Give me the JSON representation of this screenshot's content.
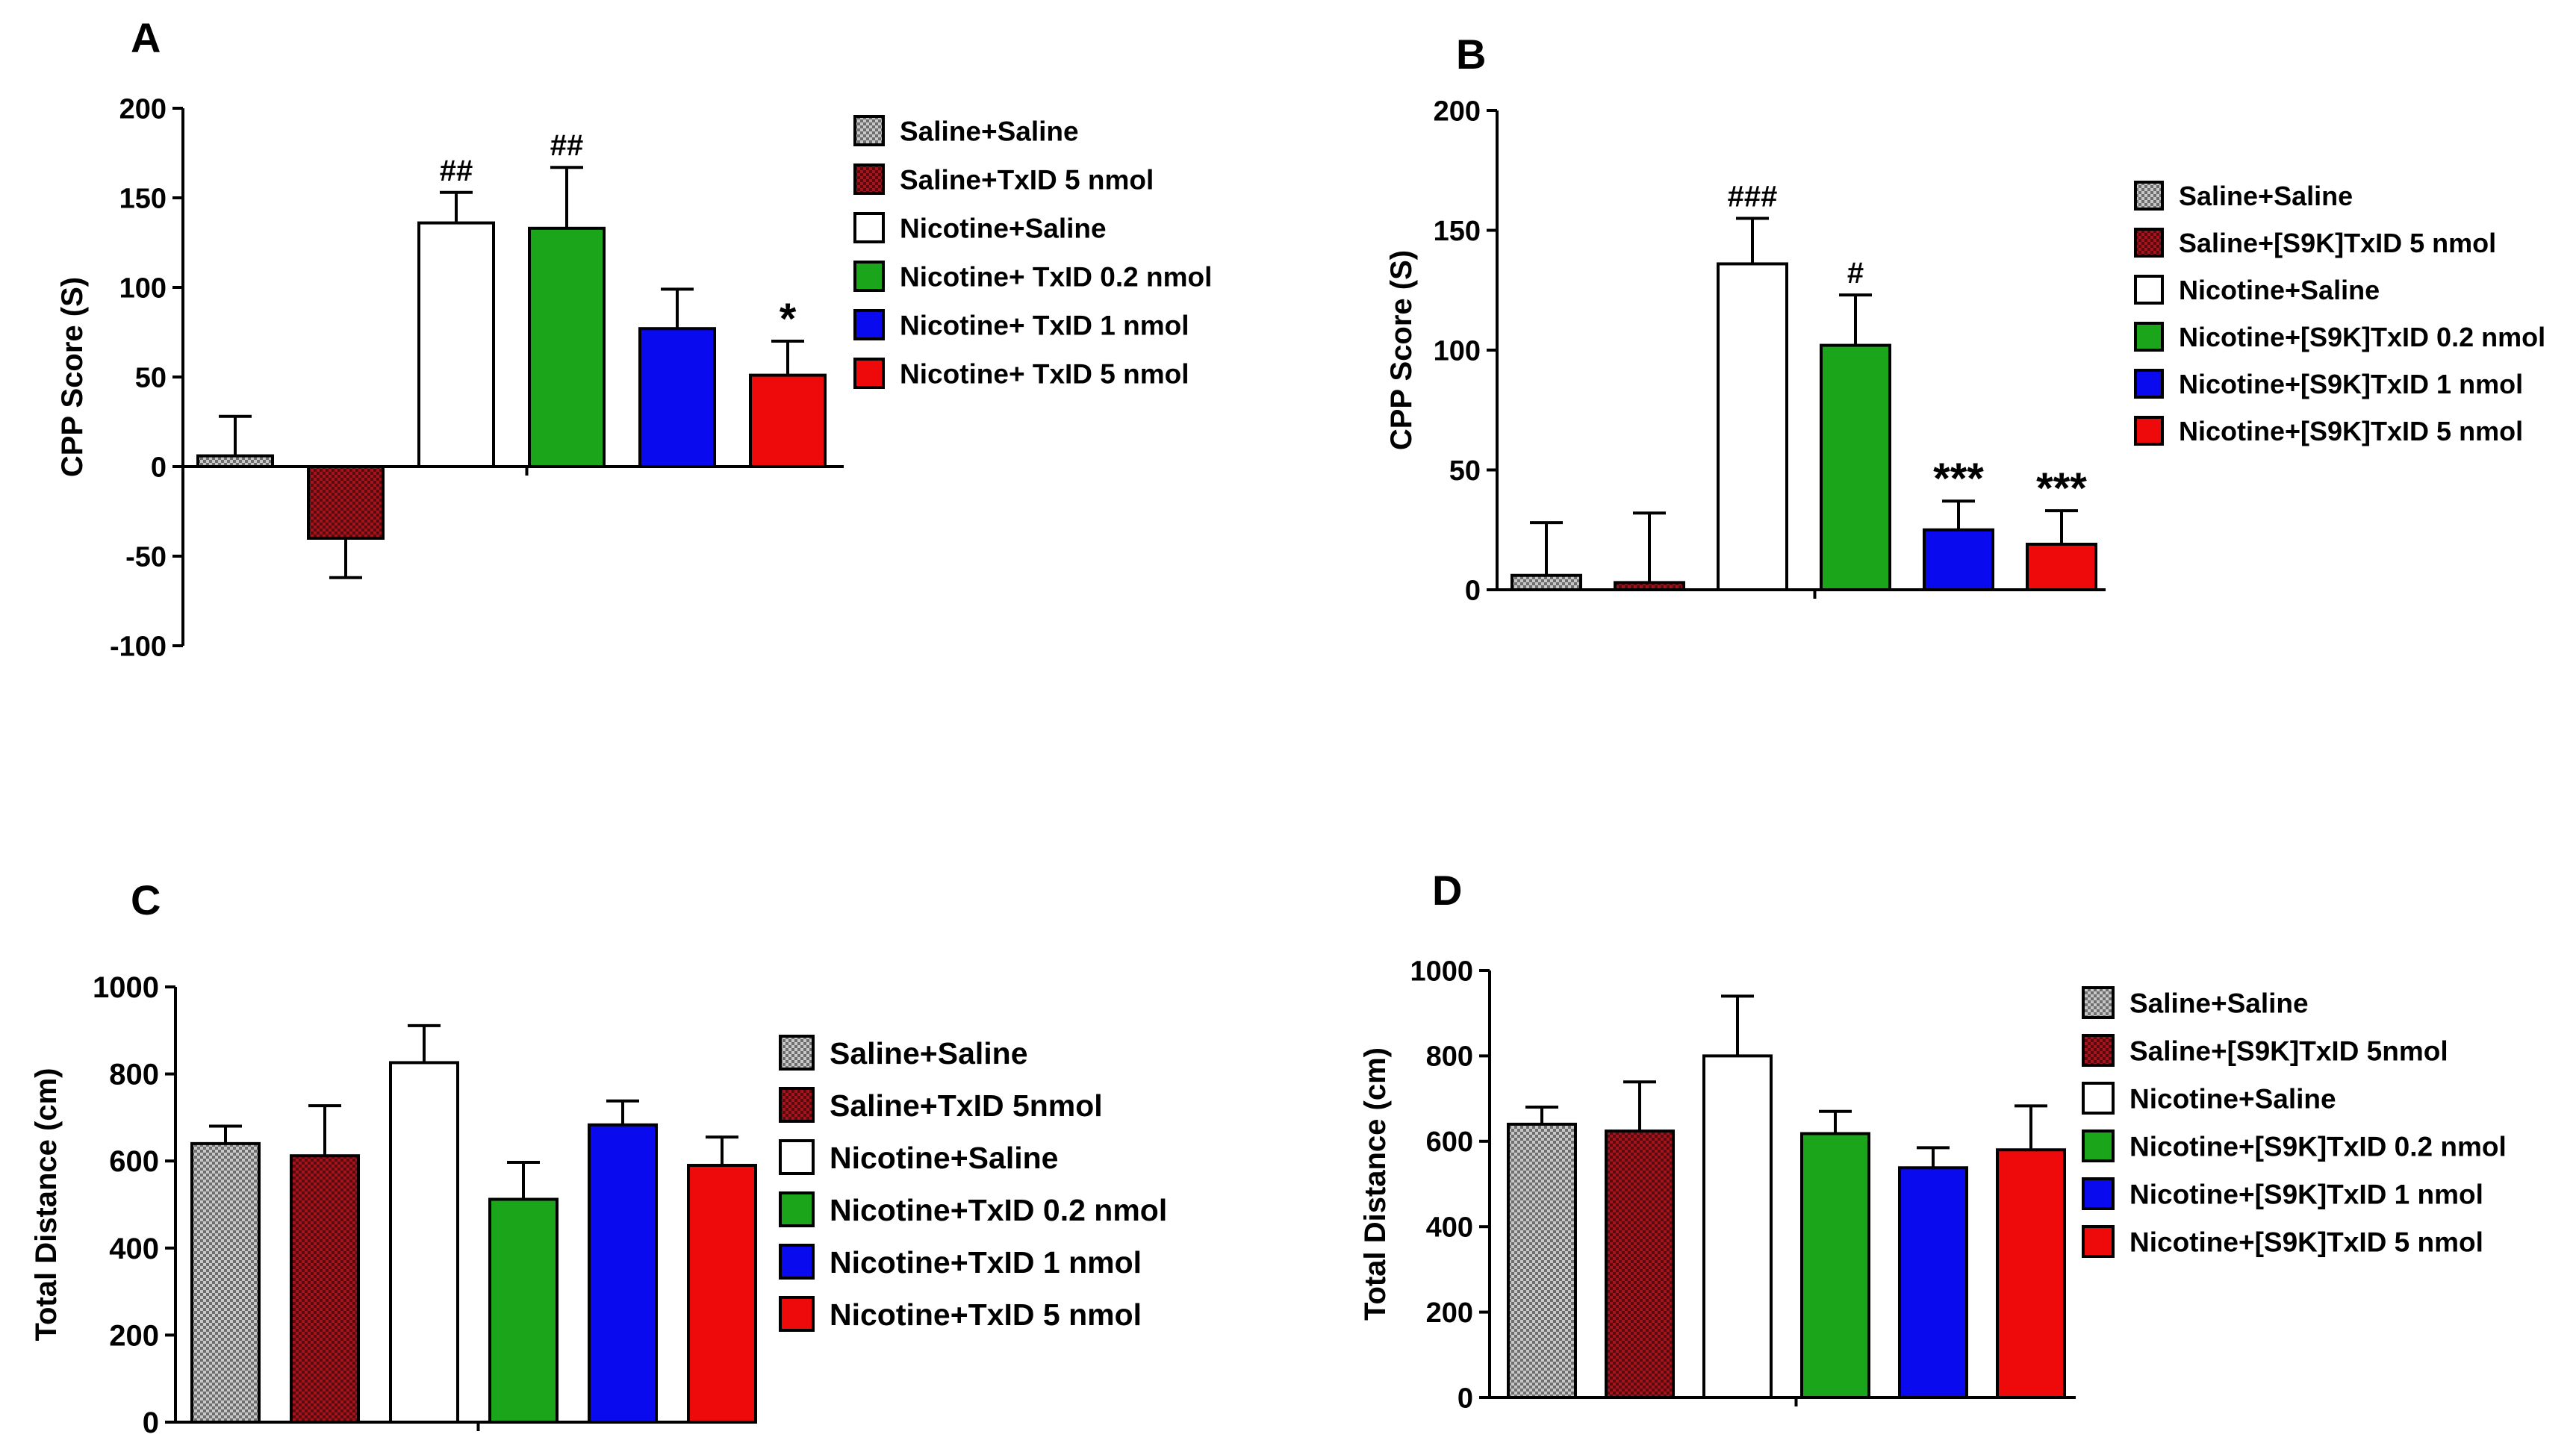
{
  "colors": {
    "saline_saline": "#bdbdbd",
    "saline_txid": "#a3141c",
    "nicotine_saline": "#ffffff",
    "nicotine_02": "#1aa51a",
    "nicotine_1": "#0a0aee",
    "nicotine_5": "#ee0a0a"
  },
  "chart_data": [
    {
      "panel": "A",
      "type": "bar",
      "ylabel": "CPP Score (S)",
      "ylim": [
        -100,
        200
      ],
      "yticks": [
        200,
        150,
        100,
        50,
        0,
        -50,
        -100
      ],
      "categories": [
        "Saline+Saline",
        "Saline+TxID 5 nmol",
        "Nicotine+Saline",
        "Nicotine+ TxID 0.2 nmol",
        "Nicotine+ TxID 1 nmol",
        "Nicotine+ TxID 5 nmol"
      ],
      "values": [
        6,
        -40,
        136,
        133,
        77,
        51
      ],
      "errors": [
        22,
        22,
        17,
        34,
        22,
        19
      ],
      "annotations": [
        "",
        "",
        "##",
        "##",
        "",
        "*"
      ],
      "legend": [
        "Saline+Saline",
        "Saline+TxID 5 nmol",
        "Nicotine+Saline",
        "Nicotine+ TxID 0.2 nmol",
        "Nicotine+ TxID 1 nmol",
        "Nicotine+ TxID 5 nmol"
      ]
    },
    {
      "panel": "B",
      "type": "bar",
      "ylabel": "CPP Score (S)",
      "ylim": [
        0,
        200
      ],
      "yticks": [
        200,
        150,
        100,
        50,
        0
      ],
      "categories": [
        "Saline+Saline",
        "Saline+[S9K]TxID 5 nmol",
        "Nicotine+Saline",
        "Nicotine+[S9K]TxID 0.2 nmol",
        "Nicotine+[S9K]TxID 1 nmol",
        "Nicotine+[S9K]TxID 5 nmol"
      ],
      "values": [
        6,
        3,
        136,
        102,
        25,
        19
      ],
      "errors": [
        22,
        29,
        19,
        21,
        12,
        14
      ],
      "annotations": [
        "",
        "",
        "###",
        "#",
        "***",
        "***"
      ],
      "legend": [
        "Saline+Saline",
        "Saline+[S9K]TxID 5 nmol",
        "Nicotine+Saline",
        "Nicotine+[S9K]TxID 0.2 nmol",
        "Nicotine+[S9K]TxID 1 nmol",
        "Nicotine+[S9K]TxID 5 nmol"
      ]
    },
    {
      "panel": "C",
      "type": "bar",
      "ylabel": "Total Distance (cm)",
      "ylim": [
        0,
        1000
      ],
      "yticks": [
        1000,
        800,
        600,
        400,
        200,
        0
      ],
      "categories": [
        "Saline+Saline",
        "Saline+TxID 5nmol",
        "Nicotine+Saline",
        "Nicotine+TxID 0.2 nmol",
        "Nicotine+TxID 1 nmol",
        "Nicotine+TxID 5 nmol"
      ],
      "values": [
        640,
        612,
        826,
        512,
        683,
        590
      ],
      "errors": [
        40,
        115,
        85,
        85,
        55,
        65
      ],
      "annotations": [
        "",
        "",
        "",
        "",
        "",
        ""
      ],
      "legend": [
        "Saline+Saline",
        "Saline+TxID 5nmol",
        "Nicotine+Saline",
        "Nicotine+TxID 0.2 nmol",
        "Nicotine+TxID 1 nmol",
        "Nicotine+TxID 5 nmol"
      ]
    },
    {
      "panel": "D",
      "type": "bar",
      "ylabel": "Total Distance (cm)",
      "ylim": [
        0,
        1000
      ],
      "yticks": [
        1000,
        800,
        600,
        400,
        200,
        0
      ],
      "categories": [
        "Saline+Saline",
        "Saline+[S9K]TxID 5nmol",
        "Nicotine+Saline",
        "Nicotine+[S9K]TxID 0.2 nmol",
        "Nicotine+[S9K]TxID 1 nmol",
        "Nicotine+[S9K]TxID 5 nmol"
      ],
      "values": [
        640,
        624,
        800,
        618,
        538,
        580
      ],
      "errors": [
        40,
        115,
        140,
        52,
        47,
        103
      ],
      "annotations": [
        "",
        "",
        "",
        "",
        "",
        ""
      ],
      "legend": [
        "Saline+Saline",
        "Saline+[S9K]TxID 5nmol",
        "Nicotine+Saline",
        "Nicotine+[S9K]TxID 0.2 nmol",
        "Nicotine+[S9K]TxID 1 nmol",
        "Nicotine+[S9K]TxID 5 nmol"
      ]
    }
  ]
}
